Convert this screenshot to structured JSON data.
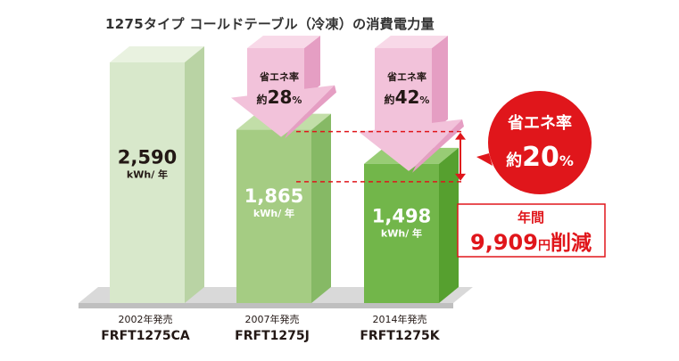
{
  "title": "1275タイプ コールドテーブル（冷凍）の消費電力量",
  "colors": {
    "bar1_front": "#d8e8cb",
    "bar1_side": "#b9d3a4",
    "bar1_top": "#e9f2e0",
    "bar2_front": "#a5cc83",
    "bar2_side": "#86b965",
    "bar2_top": "#c2dea8",
    "bar3_front": "#72b64a",
    "bar3_side": "#56a02f",
    "bar3_top": "#98cc75",
    "floor": "#d9d9d9",
    "floor_side": "#bfbfbf",
    "arrow_pink": "#f2c2da",
    "arrow_pink_dark": "#e59ec3",
    "accent_red": "#e0161b",
    "text_dark": "#231815"
  },
  "chart_data": {
    "type": "bar",
    "unit": "kWh/ 年",
    "categories": [
      {
        "year": "2002年発売",
        "model": "FRFT1275CA"
      },
      {
        "year": "2007年発売",
        "model": "FRFT1275J"
      },
      {
        "year": "2014年発売",
        "model": "FRFT1275K"
      }
    ],
    "values": [
      2590,
      1865,
      1498
    ],
    "value_labels": [
      "2,590",
      "1,865",
      "1,498"
    ],
    "savings_arrows": [
      {
        "label": "省エネ率",
        "prefix": "約",
        "value": "28",
        "suffix": "%"
      },
      {
        "label": "省エネ率",
        "prefix": "約",
        "value": "42",
        "suffix": "%"
      }
    ]
  },
  "callout": {
    "label": "省エネ率",
    "prefix": "約",
    "value": "20",
    "suffix": "%"
  },
  "annual_box": {
    "label": "年間",
    "amount": "9,909",
    "unit": "円",
    "suffix": "削減"
  }
}
